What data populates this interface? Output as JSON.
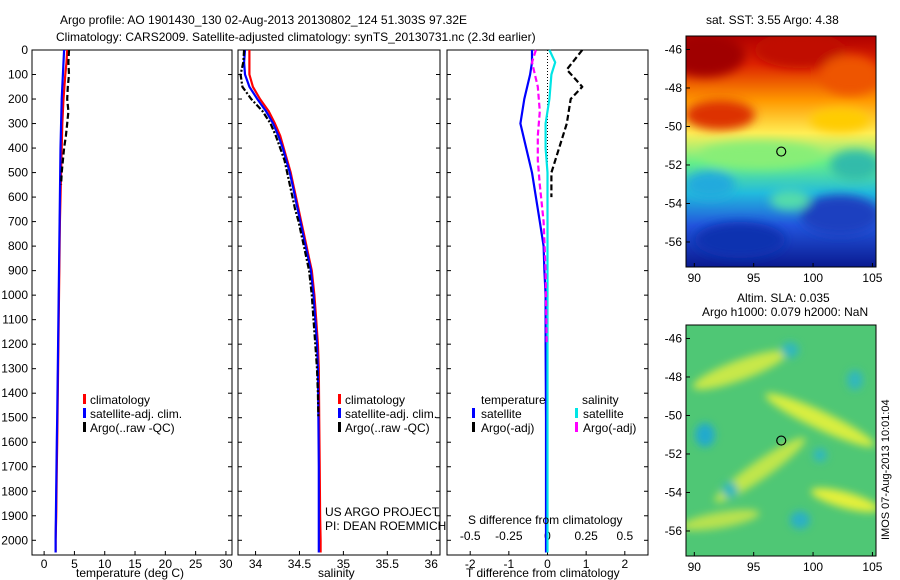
{
  "header": {
    "line1": "Argo profile: AO 1901430_130 02-Aug-2013 20130802_124 51.303S 97.32E",
    "line2": "Climatology: CARS2009. Satellite-adjusted climatology: synTS_20130731.nc (2.3d earlier)"
  },
  "stamp": "IMOS 07-Aug-2013 10:01:04",
  "chart_data": [
    {
      "type": "line",
      "id": "temperature",
      "xlabel": "temperature (deg C)",
      "xlim": [
        -2,
        31
      ],
      "ylim": [
        2060,
        0
      ],
      "xticks": [
        0,
        5,
        10,
        15,
        20,
        25,
        30
      ],
      "yticks": [
        0,
        100,
        200,
        300,
        400,
        500,
        600,
        700,
        800,
        900,
        1000,
        1100,
        1200,
        1300,
        1400,
        1500,
        1600,
        1700,
        1800,
        1900,
        2000
      ],
      "legend": [
        "climatology",
        "satellite-adj. clim.",
        "Argo(..raw -QC)"
      ],
      "series": [
        {
          "name": "climatology",
          "color": "#ff0000",
          "style": "solid",
          "points": [
            [
              3.8,
              0
            ],
            [
              3.7,
              50
            ],
            [
              3.5,
              100
            ],
            [
              3.2,
              200
            ],
            [
              3.0,
              300
            ],
            [
              2.9,
              400
            ],
            [
              2.8,
              500
            ],
            [
              2.7,
              600
            ],
            [
              2.6,
              700
            ],
            [
              2.55,
              800
            ],
            [
              2.5,
              900
            ],
            [
              2.45,
              1000
            ],
            [
              2.4,
              1100
            ],
            [
              2.35,
              1200
            ],
            [
              2.3,
              1300
            ],
            [
              2.25,
              1400
            ],
            [
              2.2,
              1500
            ],
            [
              2.15,
              1600
            ],
            [
              2.1,
              1700
            ],
            [
              2.05,
              1800
            ],
            [
              2.0,
              1900
            ],
            [
              1.9,
              2000
            ],
            [
              1.9,
              2050
            ]
          ]
        },
        {
          "name": "satellite-adj. clim.",
          "color": "#0000ff",
          "style": "solid",
          "points": [
            [
              3.3,
              0
            ],
            [
              3.2,
              50
            ],
            [
              3.1,
              100
            ],
            [
              2.9,
              200
            ],
            [
              2.8,
              300
            ],
            [
              2.7,
              400
            ],
            [
              2.65,
              500
            ],
            [
              2.6,
              600
            ],
            [
              2.55,
              700
            ],
            [
              2.5,
              800
            ],
            [
              2.45,
              900
            ],
            [
              2.4,
              1000
            ],
            [
              2.35,
              1100
            ],
            [
              2.3,
              1200
            ],
            [
              2.25,
              1300
            ],
            [
              2.2,
              1400
            ],
            [
              2.15,
              1500
            ],
            [
              2.1,
              1600
            ],
            [
              2.05,
              1700
            ],
            [
              2.0,
              1800
            ],
            [
              1.95,
              1900
            ],
            [
              1.9,
              2000
            ],
            [
              1.9,
              2050
            ]
          ]
        },
        {
          "name": "Argo(..raw -QC)",
          "color": "#000000",
          "style": "dash",
          "points": [
            [
              4.1,
              0
            ],
            [
              4.0,
              50
            ],
            [
              4.1,
              100
            ],
            [
              3.9,
              150
            ],
            [
              3.8,
              200
            ],
            [
              4.0,
              250
            ],
            [
              3.8,
              300
            ],
            [
              3.6,
              350
            ],
            [
              3.3,
              400
            ],
            [
              3.1,
              450
            ],
            [
              2.9,
              500
            ],
            [
              2.8,
              550
            ]
          ]
        }
      ]
    },
    {
      "type": "line",
      "id": "salinity",
      "xlabel": "salinity",
      "xlim": [
        33.8,
        36.1
      ],
      "ylim": [
        2060,
        0
      ],
      "xticks": [
        34,
        34.5,
        35,
        35.5,
        36
      ],
      "legend": [
        "climatology",
        "satellite-adj. clim.",
        "Argo(..raw -QC)"
      ],
      "annotation": [
        "US ARGO PROJECT",
        "PI: DEAN ROEMMICH"
      ],
      "series": [
        {
          "name": "climatology",
          "color": "#ff0000",
          "style": "solid",
          "points": [
            [
              33.93,
              0
            ],
            [
              33.93,
              50
            ],
            [
              33.93,
              100
            ],
            [
              33.97,
              150
            ],
            [
              34.05,
              200
            ],
            [
              34.15,
              250
            ],
            [
              34.22,
              300
            ],
            [
              34.28,
              350
            ],
            [
              34.32,
              400
            ],
            [
              34.36,
              450
            ],
            [
              34.4,
              500
            ],
            [
              34.43,
              550
            ],
            [
              34.46,
              600
            ],
            [
              34.49,
              650
            ],
            [
              34.52,
              700
            ],
            [
              34.55,
              750
            ],
            [
              34.58,
              800
            ],
            [
              34.61,
              850
            ],
            [
              34.64,
              900
            ],
            [
              34.67,
              1000
            ],
            [
              34.69,
              1100
            ],
            [
              34.71,
              1200
            ],
            [
              34.72,
              1300
            ],
            [
              34.725,
              1500
            ],
            [
              34.73,
              1700
            ],
            [
              34.735,
              1900
            ],
            [
              34.74,
              2000
            ],
            [
              34.74,
              2050
            ]
          ]
        },
        {
          "name": "satellite-adj. clim.",
          "color": "#0000ff",
          "style": "solid",
          "points": [
            [
              33.88,
              0
            ],
            [
              33.87,
              50
            ],
            [
              33.88,
              100
            ],
            [
              33.93,
              150
            ],
            [
              34.02,
              200
            ],
            [
              34.12,
              250
            ],
            [
              34.2,
              300
            ],
            [
              34.26,
              350
            ],
            [
              34.31,
              400
            ],
            [
              34.35,
              450
            ],
            [
              34.39,
              500
            ],
            [
              34.42,
              550
            ],
            [
              34.45,
              600
            ],
            [
              34.48,
              650
            ],
            [
              34.51,
              700
            ],
            [
              34.54,
              750
            ],
            [
              34.57,
              800
            ],
            [
              34.6,
              850
            ],
            [
              34.63,
              900
            ],
            [
              34.66,
              1000
            ],
            [
              34.68,
              1100
            ],
            [
              34.7,
              1200
            ],
            [
              34.71,
              1300
            ],
            [
              34.715,
              1500
            ],
            [
              34.72,
              1700
            ],
            [
              34.72,
              1900
            ],
            [
              34.72,
              2000
            ],
            [
              34.72,
              2050
            ]
          ]
        },
        {
          "name": "Argo(..raw -QC)",
          "color": "#000000",
          "style": "dashdot",
          "points": [
            [
              33.87,
              0
            ],
            [
              33.86,
              50
            ],
            [
              33.83,
              100
            ],
            [
              33.85,
              150
            ],
            [
              33.95,
              200
            ],
            [
              34.08,
              250
            ],
            [
              34.17,
              300
            ],
            [
              34.23,
              350
            ],
            [
              34.28,
              400
            ],
            [
              34.33,
              450
            ],
            [
              34.36,
              500
            ],
            [
              34.39,
              550
            ],
            [
              34.42,
              600
            ],
            [
              34.45,
              650
            ],
            [
              34.49,
              700
            ],
            [
              34.52,
              750
            ],
            [
              34.55,
              800
            ],
            [
              34.58,
              850
            ],
            [
              34.61,
              900
            ],
            [
              34.64,
              1000
            ],
            [
              34.66,
              1100
            ],
            [
              34.68,
              1200
            ],
            [
              34.7,
              1300
            ],
            [
              34.71,
              1400
            ],
            [
              34.715,
              1500
            ]
          ]
        }
      ]
    },
    {
      "type": "line",
      "id": "difference",
      "xlabel": "T difference from climatology",
      "xlabel_top": "S difference from climatology",
      "xlim": [
        -2.6,
        2.6
      ],
      "ylim": [
        2060,
        0
      ],
      "xticks": [
        -2,
        -1,
        0,
        1,
        2
      ],
      "xticks_s": [
        [
          "-0.5",
          -2
        ],
        [
          "-0.25",
          -1
        ],
        [
          "0",
          0
        ],
        [
          "0.25",
          1
        ],
        [
          "0.5",
          2
        ]
      ],
      "legend_titles": [
        "temperature",
        "salinity"
      ],
      "legend": [
        "satellite",
        "Argo(-adj)",
        "satellite",
        "Argo(-adj)"
      ],
      "series": [
        {
          "name": "T satellite",
          "color": "#0000ff",
          "style": "solid",
          "points": [
            [
              -0.4,
              0
            ],
            [
              -0.4,
              50
            ],
            [
              -0.45,
              100
            ],
            [
              -0.6,
              200
            ],
            [
              -0.7,
              300
            ],
            [
              -0.55,
              400
            ],
            [
              -0.4,
              500
            ],
            [
              -0.3,
              600
            ],
            [
              -0.2,
              700
            ],
            [
              -0.1,
              800
            ],
            [
              -0.08,
              900
            ],
            [
              -0.05,
              1000
            ],
            [
              -0.05,
              1200
            ],
            [
              -0.04,
              1500
            ],
            [
              -0.04,
              1800
            ],
            [
              -0.04,
              2050
            ]
          ]
        },
        {
          "name": "T Argo(-adj)",
          "color": "#000000",
          "style": "dash",
          "points": [
            [
              0.9,
              0
            ],
            [
              0.5,
              80
            ],
            [
              0.9,
              150
            ],
            [
              0.6,
              200
            ],
            [
              0.5,
              300
            ],
            [
              0.3,
              400
            ],
            [
              0.1,
              500
            ],
            [
              0.1,
              600
            ]
          ]
        },
        {
          "name": "S satellite",
          "color": "#00e5e5",
          "style": "solid",
          "points": [
            [
              0.05,
              0
            ],
            [
              0.2,
              50
            ],
            [
              0.1,
              100
            ],
            [
              0.05,
              200
            ],
            [
              -0.05,
              300
            ],
            [
              -0.05,
              400
            ],
            [
              0.0,
              500
            ],
            [
              0.0,
              700
            ],
            [
              0.0,
              1000
            ],
            [
              0.0,
              1500
            ],
            [
              0.0,
              2050
            ]
          ]
        },
        {
          "name": "S Argo(-adj)",
          "color": "#ff00ff",
          "style": "dash",
          "points": [
            [
              -0.3,
              0
            ],
            [
              -0.4,
              50
            ],
            [
              -0.25,
              150
            ],
            [
              -0.2,
              250
            ],
            [
              -0.25,
              350
            ],
            [
              -0.25,
              450
            ],
            [
              -0.2,
              550
            ],
            [
              -0.1,
              700
            ],
            [
              -0.05,
              900
            ],
            [
              -0.02,
              1200
            ]
          ]
        }
      ]
    },
    {
      "type": "heatmap",
      "id": "sst-map",
      "title": "sat. SST: 3.55 Argo: 4.38",
      "xlim": [
        89.3,
        105.3
      ],
      "ylim": [
        -57.3,
        -45.3
      ],
      "xticks": [
        90,
        95,
        100,
        105
      ],
      "yticks": [
        -46,
        -48,
        -50,
        -52,
        -54,
        -56
      ],
      "marker": [
        97.32,
        -51.303
      ]
    },
    {
      "type": "heatmap",
      "id": "sla-map",
      "title": "Altim. SLA: 0.035",
      "subtitle": "Argo h1000: 0.079 h2000: NaN",
      "xlim": [
        89.3,
        105.3
      ],
      "ylim": [
        -57.3,
        -45.3
      ],
      "xticks": [
        90,
        95,
        100,
        105
      ],
      "yticks": [
        -46,
        -48,
        -50,
        -52,
        -54,
        -56
      ],
      "marker": [
        97.32,
        -51.303
      ]
    }
  ]
}
